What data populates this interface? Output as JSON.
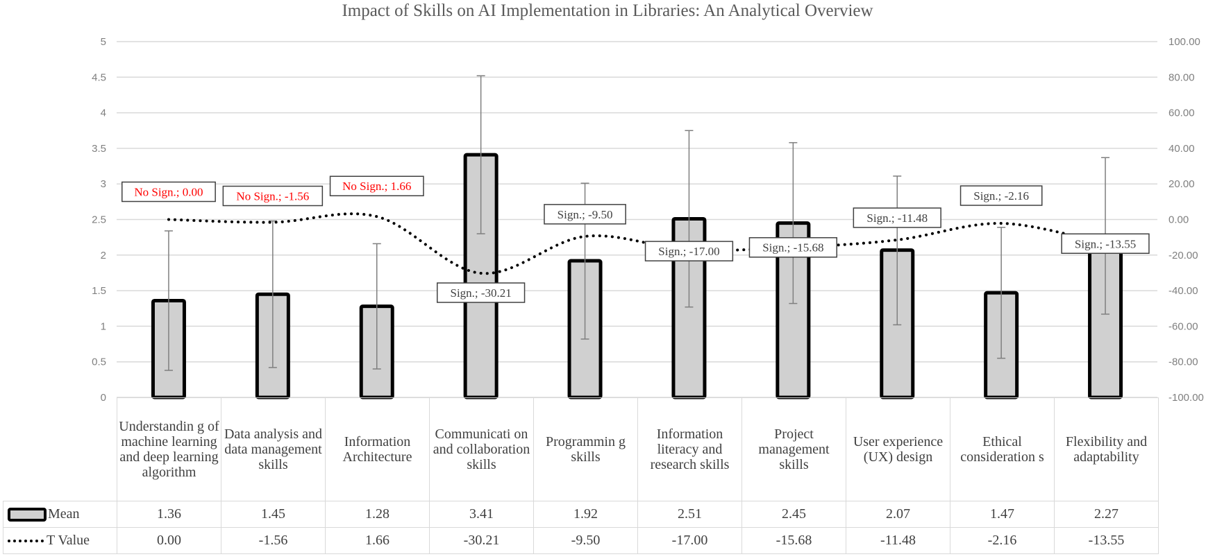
{
  "chart_data": {
    "type": "bar",
    "title": "Impact of Skills on AI Implementation in Libraries: An Analytical Overview",
    "categories": [
      "Understanding of machine learning and deep learning algorithm",
      "Data analysis and data management skills",
      "Information Architecture",
      "Communication and collaboration skills",
      "Programming skills",
      "Information literacy and research skills",
      "Project management skills",
      "User experience (UX) design",
      "Ethical considerations",
      "Flexibility and adaptability"
    ],
    "category_display": [
      "Understandin g of machine learning and deep learning algorithm",
      "Data analysis and data management skills",
      "Information Architecture",
      "Communicati on and collaboration skills",
      "Programmin g skills",
      "Information literacy and research skills",
      "Project management skills",
      "User experience (UX) design",
      "Ethical consideration s",
      "Flexibility and adaptability"
    ],
    "series": [
      {
        "name": "Mean",
        "type": "bar",
        "axis": "left",
        "values": [
          1.36,
          1.45,
          1.28,
          3.41,
          1.92,
          2.51,
          2.45,
          2.07,
          1.47,
          2.27
        ],
        "error_bars": {
          "low": [
            0.38,
            0.42,
            0.4,
            2.3,
            0.82,
            1.27,
            1.32,
            1.02,
            0.55,
            1.17
          ],
          "high": [
            2.34,
            2.48,
            2.16,
            4.52,
            3.01,
            3.75,
            3.58,
            3.11,
            2.39,
            3.37
          ]
        },
        "fill": "#d0d0d0",
        "stroke": "#000000"
      },
      {
        "name": "T Value",
        "type": "line",
        "style": "dotted",
        "axis": "right",
        "values": [
          0.0,
          -1.56,
          1.66,
          -30.21,
          -9.5,
          -17.0,
          -15.68,
          -11.48,
          -2.16,
          -13.55
        ],
        "labels": [
          "No Sign.; 0.00",
          "No Sign.; -1.56",
          "No Sign.; 1.66",
          "Sign.; -30.21",
          "Sign.; -9.50",
          "Sign.; -17.00",
          "Sign.; -15.68",
          "Sign.; -11.48",
          "Sign.; -2.16",
          "Sign.; -13.55"
        ],
        "significant": [
          false,
          false,
          false,
          true,
          true,
          true,
          true,
          true,
          true,
          true
        ]
      }
    ],
    "left_axis": {
      "ylim": [
        0,
        5
      ],
      "ticks": [
        "0",
        "0.5",
        "1",
        "1.5",
        "2",
        "2.5",
        "3",
        "3.5",
        "4",
        "4.5",
        "5"
      ]
    },
    "right_axis": {
      "ylim": [
        -100,
        100
      ],
      "ticks": [
        "-100.00",
        "-80.00",
        "-60.00",
        "-40.00",
        "-20.00",
        "0.00",
        "20.00",
        "40.00",
        "60.00",
        "80.00",
        "100.00"
      ]
    },
    "xlabel": "",
    "ylabel": "",
    "grid": true,
    "legend_position": "data-table"
  },
  "colors": {
    "bar_fill": "#d0d0d0",
    "bar_stroke": "#000000",
    "not_significant_label": "#ff0000",
    "significant_label": "#404040",
    "grid": "#d9d9d9",
    "axis_text": "#7f7f7f",
    "error_bar": "#7f7f7f"
  },
  "table": {
    "rows": [
      {
        "legend": "Mean",
        "values": [
          "1.36",
          "1.45",
          "1.28",
          "3.41",
          "1.92",
          "2.51",
          "2.45",
          "2.07",
          "1.47",
          "2.27"
        ]
      },
      {
        "legend": "T Value",
        "values": [
          "0.00",
          "-1.56",
          "1.66",
          "-30.21",
          "-9.50",
          "-17.00",
          "-15.68",
          "-11.48",
          "-2.16",
          "-13.55"
        ]
      }
    ]
  }
}
